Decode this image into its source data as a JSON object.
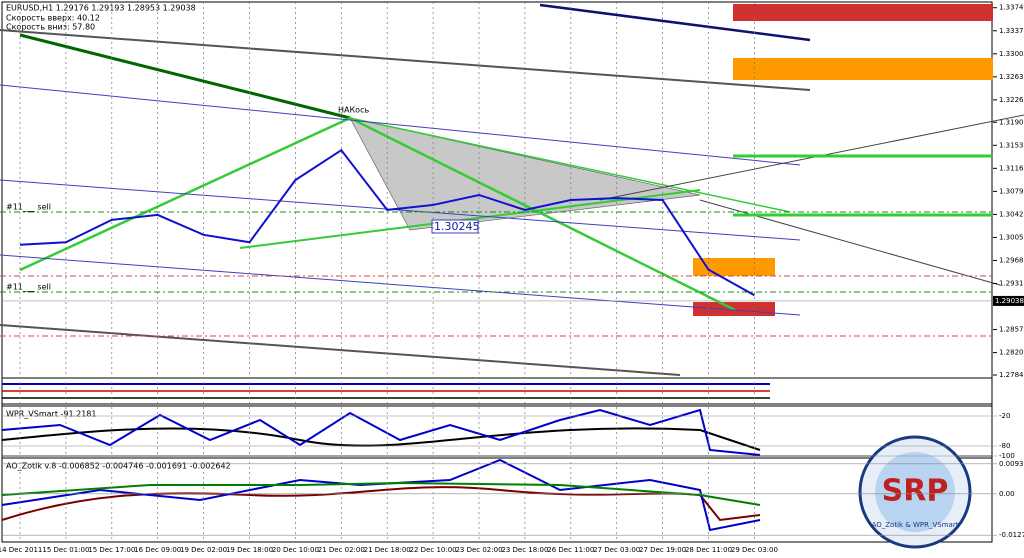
{
  "header": {
    "symbol_line": "EURUSD,H1  1.29176 1.29193 1.28953 1.29038",
    "speed_up": "Скорость вверх: 40.12",
    "speed_down": "Скорость вниз: 57.80"
  },
  "annotations": {
    "peak": "НАКось",
    "level": "1.30245",
    "sell_1": "#11___ sell",
    "sell_2": "#11___ sell"
  },
  "chart_data": {
    "type": "line",
    "categories": [
      "14 Dec 2011",
      "15 Dec 01:00",
      "15 Dec 17:00",
      "16 Dec 09:00",
      "19 Dec 02:00",
      "19 Dec 18:00",
      "20 Dec 10:00",
      "21 Dec 02:00",
      "21 Dec 18:00",
      "22 Dec 10:00",
      "23 Dec 02:00",
      "23 Dec 18:00",
      "26 Dec 11:00",
      "27 Dec 03:00",
      "27 Dec 19:00",
      "28 Dec 11:00",
      "29 Dec 03:00"
    ],
    "values": [
      1.2994,
      1.2998,
      1.3034,
      1.3042,
      1.301,
      1.2998,
      1.3098,
      1.3146,
      1.305,
      1.3058,
      1.3074,
      1.305,
      1.3066,
      1.3069,
      1.3066,
      1.2954,
      1.2913
    ],
    "color": "#1010d0",
    "ylim": [
      1.278,
      1.3384
    ],
    "yticks": [
      1.33748,
      1.33378,
      {
        "value": 1.33008,
        "label": "1.33008"
      },
      1.32638,
      1.32268,
      {
        "value": 1.31908,
        "label": "1.31908"
      },
      {
        "value": 1.31538,
        "label": "1.31538"
      },
      {
        "value": 1.31168,
        "label": "1.31168"
      },
      {
        "value": 1.30798,
        "label": "1.30798"
      },
      {
        "value": 1.30428,
        "label": "1.30428"
      },
      {
        "value": 1.30058,
        "label": "1.30058"
      },
      {
        "value": 1.29688,
        "label": "1.29688"
      },
      {
        "value": 1.29318,
        "label": "1.29318"
      },
      {
        "value": 1.28578,
        "label": "1.28578"
      },
      {
        "value": 1.28208,
        "label": "1.28208"
      },
      {
        "value": 1.27848,
        "label": "1.27848"
      }
    ],
    "current_price": 1.29038,
    "grid": true
  },
  "wpr": {
    "label": "WPR_VSmart -91.2181",
    "ylim": [
      0,
      -100
    ],
    "yticks": [
      -20,
      -80,
      -100
    ]
  },
  "ao": {
    "label": "AO_Zotik v.8 -0.006852 -0.004746 -0.001691 -0.002642",
    "ylim": [
      0.0111,
      -0.0149
    ],
    "yticks": [
      0.00931,
      {
        "value": 0,
        "label": "0.00"
      },
      -0.01278
    ]
  },
  "logo": {
    "mark": "SRP",
    "caption": "AO_Zotik & WPR_VSmart"
  }
}
